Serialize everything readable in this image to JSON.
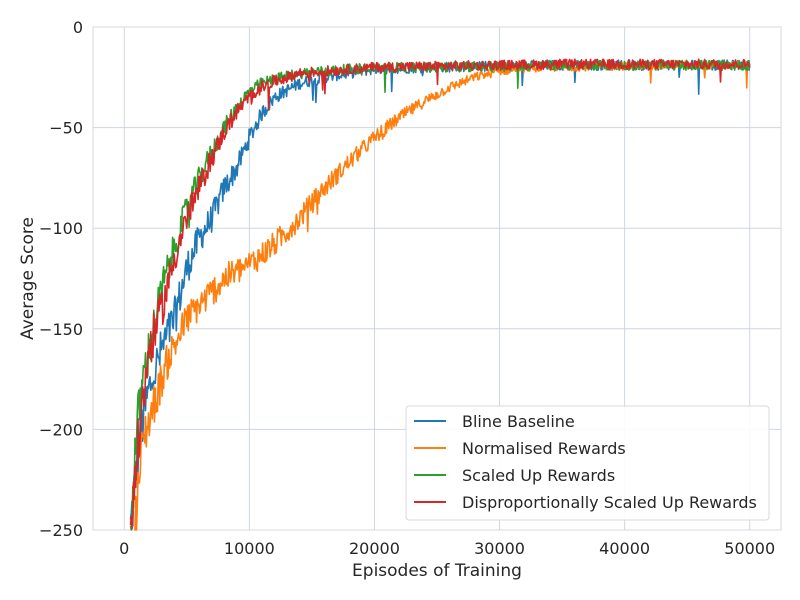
{
  "chart_data": {
    "type": "line",
    "title": "",
    "xlabel": "Episodes of Training",
    "ylabel": "Average Score",
    "xlim": [
      -2500,
      52500
    ],
    "ylim": [
      -250,
      0
    ],
    "xticks": [
      0,
      10000,
      20000,
      30000,
      40000,
      50000
    ],
    "xtick_labels": [
      "0",
      "10000",
      "20000",
      "30000",
      "40000",
      "50000"
    ],
    "yticks": [
      0,
      -50,
      -100,
      -150,
      -200,
      -250
    ],
    "ytick_labels": [
      "0",
      "−50",
      "−100",
      "−150",
      "−200",
      "−250"
    ],
    "grid": true,
    "legend_position": "bottom-right",
    "series": [
      {
        "name": "Bline Baseline",
        "color": "#1f77b4",
        "noise": 2.5,
        "x": [
          500,
          1000,
          1500,
          2000,
          3000,
          4000,
          5000,
          6000,
          7000,
          8000,
          9000,
          10000,
          11000,
          12000,
          14000,
          16000,
          18000,
          20000,
          25000,
          30000,
          35000,
          40000,
          45000,
          50000
        ],
        "y": [
          -250,
          -215,
          -195,
          -180,
          -160,
          -145,
          -120,
          -105,
          -95,
          -80,
          -70,
          -55,
          -43,
          -35,
          -28,
          -25,
          -23,
          -21,
          -20,
          -19.5,
          -19,
          -19,
          -19,
          -19
        ]
      },
      {
        "name": "Normalised Rewards",
        "color": "#ff7f0e",
        "noise": 2,
        "x": [
          800,
          1500,
          2500,
          3500,
          5000,
          6500,
          8000,
          10000,
          12000,
          14000,
          16000,
          18000,
          20000,
          22000,
          24000,
          26000,
          28000,
          30000,
          32000,
          35000,
          40000,
          45000,
          50000
        ],
        "y": [
          -250,
          -205,
          -185,
          -165,
          -145,
          -135,
          -125,
          -118,
          -108,
          -95,
          -80,
          -67,
          -55,
          -45,
          -37,
          -30,
          -25,
          -22,
          -20.5,
          -20,
          -19.5,
          -19,
          -19
        ]
      },
      {
        "name": "Scaled Up Rewards",
        "color": "#2ca02c",
        "noise": 2.5,
        "x": [
          500,
          1000,
          1500,
          2000,
          3000,
          4000,
          5000,
          6000,
          7000,
          8000,
          9000,
          10000,
          11000,
          12000,
          14000,
          16000,
          18000,
          20000,
          25000,
          30000,
          35000,
          40000,
          45000,
          50000
        ],
        "y": [
          -250,
          -200,
          -175,
          -160,
          -130,
          -110,
          -90,
          -75,
          -62,
          -50,
          -40,
          -32,
          -28,
          -26,
          -23,
          -22,
          -21,
          -20,
          -20,
          -19.5,
          -19,
          -19,
          -19,
          -19
        ]
      },
      {
        "name": "Disproportionally Scaled Up Rewards",
        "color": "#d62728",
        "noise": 2.5,
        "x": [
          500,
          1000,
          1500,
          2000,
          3000,
          4000,
          5000,
          6000,
          7000,
          8000,
          9000,
          10000,
          11000,
          12000,
          14000,
          16000,
          18000,
          20000,
          25000,
          30000,
          35000,
          40000,
          45000,
          50000
        ],
        "y": [
          -250,
          -215,
          -185,
          -160,
          -140,
          -115,
          -95,
          -80,
          -65,
          -52,
          -42,
          -35,
          -30,
          -27,
          -23,
          -22,
          -21,
          -20,
          -19.5,
          -19,
          -18.5,
          -18.5,
          -18.5,
          -18.5
        ]
      }
    ]
  }
}
